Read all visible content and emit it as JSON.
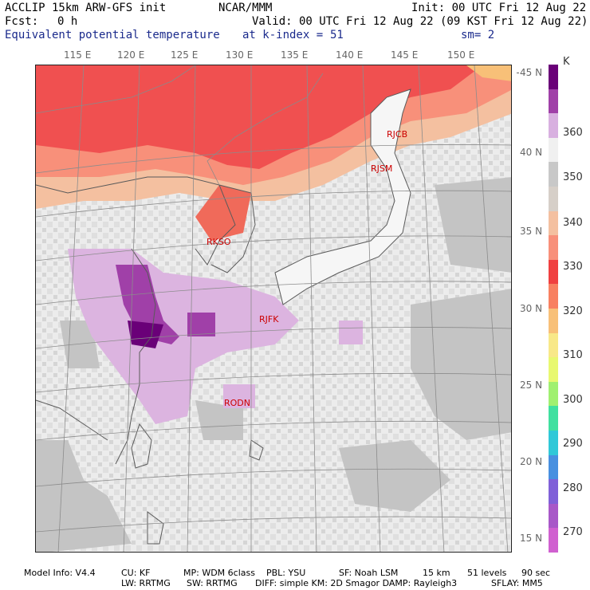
{
  "header": {
    "model": "ACCLIP 15km ARW-GFS init",
    "org": "NCAR/MMM",
    "init": "Init: 00 UTC Fri 12 Aug 22",
    "fcst_label": "Fcst:",
    "fcst_value": "0 h",
    "valid": "Valid: 00 UTC Fri 12 Aug 22 (09 KST Fri 12 Aug 22)",
    "field": "Equivalent potential temperature",
    "level": "at k-index =",
    "level_value": "51",
    "smooth": "sm= 2"
  },
  "lon_labels": [
    "115 E",
    "120 E",
    "125 E",
    "130 E",
    "135 E",
    "140 E",
    "145 E",
    "150 E"
  ],
  "lat_labels": [
    "45 N",
    "40 N",
    "35 N",
    "30 N",
    "25 N",
    "20 N",
    "15 N"
  ],
  "colorbar": {
    "unit": "K",
    "labels": [
      "360",
      "350",
      "340",
      "330",
      "320",
      "310",
      "300",
      "290",
      "280",
      "270"
    ],
    "colors": [
      "#6a0078",
      "#a040a8",
      "#d8b0e0",
      "#f0f0f0",
      "#c8c8c8",
      "#d6cfc8",
      "#f4c0a0",
      "#f8907a",
      "#f04040",
      "#f88060",
      "#f8c078",
      "#f8e888",
      "#e8f870",
      "#a0f070",
      "#40e0a0",
      "#30c8d8",
      "#4890e0",
      "#8060d8",
      "#a858c8",
      "#d060d0"
    ]
  },
  "stations": [
    "RJCB",
    "RJSM",
    "RKSO",
    "RJFK",
    "RODN"
  ],
  "footer": {
    "line1": {
      "info": "Model Info: V4.4",
      "cu": "CU: KF",
      "mp": "MP: WDM 6class",
      "pbl": "PBL: YSU",
      "sf": "SF: Noah LSM",
      "res": "15 km",
      "levels": "51 levels",
      "dt": "90 sec"
    },
    "line2": {
      "lw": "LW: RRTMG",
      "sw": "SW: RRTMG",
      "diff": "DIFF: simple KM: 2D Smagor DAMP: Rayleigh3",
      "sflay": "SFLAY: MM5"
    }
  }
}
